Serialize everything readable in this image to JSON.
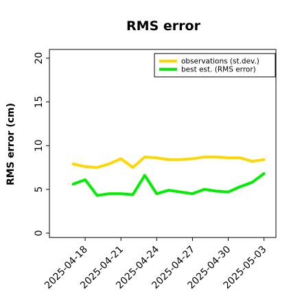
{
  "chart_data": {
    "type": "line",
    "title": "RMS error",
    "ylabel": "RMS error (cm)",
    "xlabel": "",
    "ylim": [
      -0.5,
      21
    ],
    "yticks": [
      0,
      5,
      10,
      15,
      20
    ],
    "x": [
      "2025-04-17",
      "2025-04-18",
      "2025-04-19",
      "2025-04-20",
      "2025-04-21",
      "2025-04-22",
      "2025-04-23",
      "2025-04-24",
      "2025-04-25",
      "2025-04-26",
      "2025-04-27",
      "2025-04-28",
      "2025-04-29",
      "2025-04-30",
      "2025-05-01",
      "2025-05-02",
      "2025-05-03"
    ],
    "xlim": [
      "2025-04-15",
      "2025-05-04"
    ],
    "xticks": [
      {
        "date": "2025-04-18",
        "label": "2025-04-18",
        "color": "#000000"
      },
      {
        "date": "2025-04-21",
        "label": "2025-04-21",
        "color": "#000000"
      },
      {
        "date": "2025-04-24",
        "label": "2025-04-24",
        "color": "#228b22"
      },
      {
        "date": "2025-04-27",
        "label": "2025-04-27",
        "color": "#000000"
      },
      {
        "date": "2025-04-30",
        "label": "2025-04-30",
        "color": "#000000"
      },
      {
        "date": "2025-05-03",
        "label": "2025-05-03",
        "color": "#000000"
      }
    ],
    "series": [
      {
        "name": "observations (st.dev.)",
        "color": "#ffd700",
        "values": [
          7.9,
          7.6,
          7.5,
          7.9,
          8.5,
          7.5,
          8.7,
          8.6,
          8.4,
          8.4,
          8.5,
          8.7,
          8.7,
          8.6,
          8.6,
          8.2,
          8.4
        ]
      },
      {
        "name": "best est. (RMS error)",
        "color": "#00ee00",
        "values": [
          5.6,
          6.1,
          4.3,
          4.5,
          4.5,
          4.4,
          6.6,
          4.5,
          4.9,
          4.7,
          4.5,
          5.0,
          4.8,
          4.7,
          5.3,
          5.8,
          6.8
        ]
      }
    ],
    "legend_position": "top-right",
    "grid": false
  }
}
